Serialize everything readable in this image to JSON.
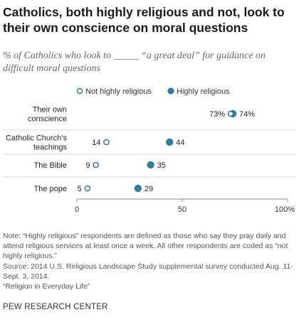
{
  "title": "Catholics, both highly religious and not, look to their own conscience on moral questions",
  "subtitle": "% of Catholics who look to _____ “a great deal” for guidance on difficult moral questions",
  "colors": {
    "highly_religious": "#2f7fa0",
    "not_highly_religious": "#ffffff",
    "marker_stroke": "#2a6f8e",
    "gridline": "#d7d7d7",
    "axis": "#888888"
  },
  "chart_data": {
    "type": "scatter",
    "categories": [
      [
        "Their own",
        "conscience"
      ],
      [
        "Catholic Church’s",
        "teachings"
      ],
      [
        "The Bible"
      ],
      [
        "The pope"
      ]
    ],
    "series": [
      {
        "name": "Not highly religious",
        "values": [
          73,
          14,
          9,
          5
        ]
      },
      {
        "name": "Highly religious",
        "values": [
          74,
          44,
          35,
          29
        ]
      }
    ],
    "value_labels": {
      "Not highly religious": [
        "73%",
        "14",
        "9",
        "5"
      ],
      "Highly religious": [
        "74%",
        "44",
        "35",
        "29"
      ]
    },
    "xlim": [
      0,
      100
    ],
    "xticks": [
      0,
      50,
      100
    ],
    "xtick_labels": [
      "0",
      "50",
      "100%"
    ],
    "legend_position": "top",
    "grid": "horizontal separators between rows"
  },
  "notes": [
    "Note: “Highly religious” respondents are defined as those who say they pray daily and attend religious services at least once a week. All other respondents are coded as “not highly religious.”",
    "Source: 2014 U.S. Religious Landscape Study supplemental survey conducted Aug. 11-Sept. 3, 2014.",
    "“Religion in Everyday Life”"
  ],
  "source_brand": "PEW RESEARCH CENTER"
}
